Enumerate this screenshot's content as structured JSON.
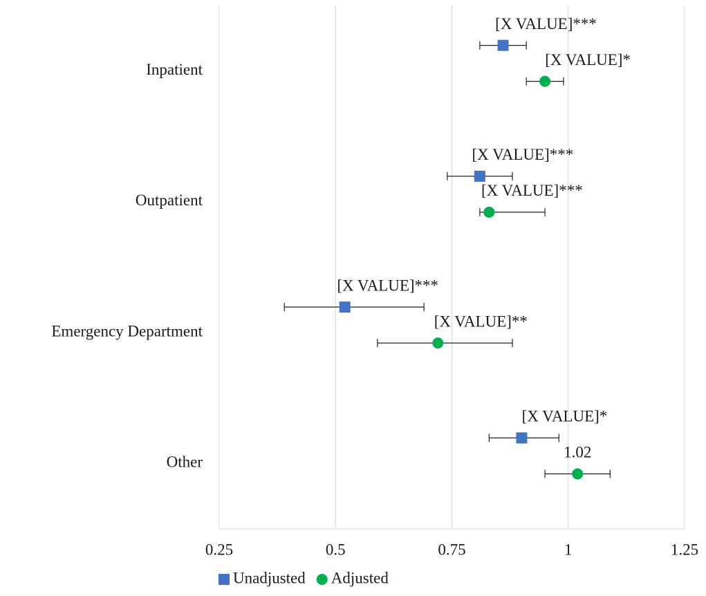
{
  "chart_data": {
    "type": "errorbar-dot",
    "categories": [
      "Inpatient",
      "Outpatient",
      "Emergency Department",
      "Other"
    ],
    "series": [
      {
        "name": "Unadjusted",
        "color": "#4472c4",
        "marker": "square",
        "values": [
          0.86,
          0.81,
          0.52,
          0.9
        ],
        "ci_low": [
          0.81,
          0.74,
          0.39,
          0.83
        ],
        "ci_high": [
          0.91,
          0.88,
          0.69,
          0.98
        ],
        "value_labels": [
          "[X VALUE]***",
          "[X VALUE]***",
          "[X VALUE]***",
          "[X VALUE]*"
        ]
      },
      {
        "name": "Adjusted",
        "color": "#00b050",
        "marker": "circle",
        "values": [
          0.95,
          0.83,
          0.72,
          1.02
        ],
        "ci_low": [
          0.91,
          0.81,
          0.59,
          0.95
        ],
        "ci_high": [
          0.99,
          0.95,
          0.88,
          1.09
        ],
        "value_labels": [
          "[X VALUE]*",
          "[X VALUE]***",
          "[X VALUE]**",
          "1.02"
        ]
      }
    ],
    "xlim": [
      0.25,
      1.25
    ],
    "xticks": [
      0.25,
      0.5,
      0.75,
      1,
      1.25
    ],
    "grid": true,
    "legend": "bottom"
  }
}
